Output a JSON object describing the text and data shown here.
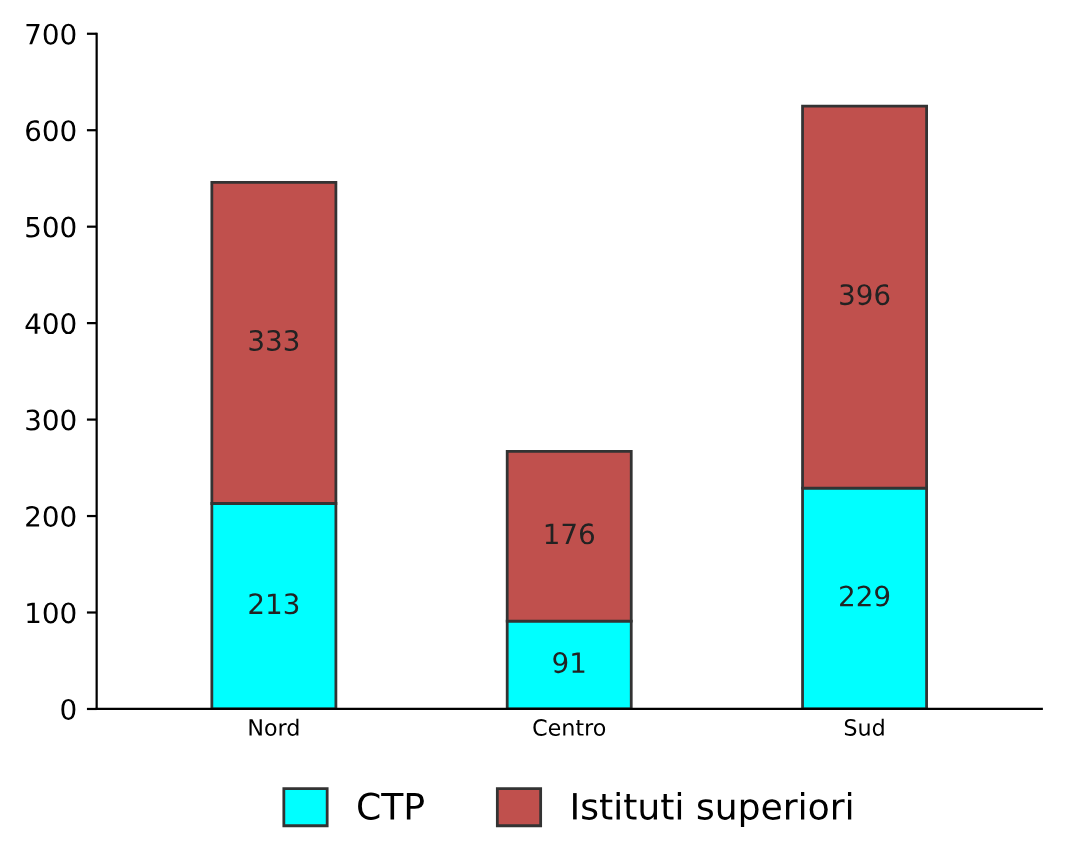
{
  "chart_data": {
    "type": "bar",
    "stacked": true,
    "categories": [
      "Nord",
      "Centro",
      "Sud"
    ],
    "series": [
      {
        "name": "CTP",
        "color": "#00ffff",
        "values": [
          213,
          91,
          229
        ]
      },
      {
        "name": "Istituti superiori",
        "color": "#c0504d",
        "values": [
          333,
          176,
          396
        ]
      }
    ],
    "ylim": [
      0,
      700
    ],
    "yticks": [
      0,
      100,
      200,
      300,
      400,
      500,
      600,
      700
    ],
    "grid": false,
    "legend": "bottom",
    "data_labels": true
  }
}
